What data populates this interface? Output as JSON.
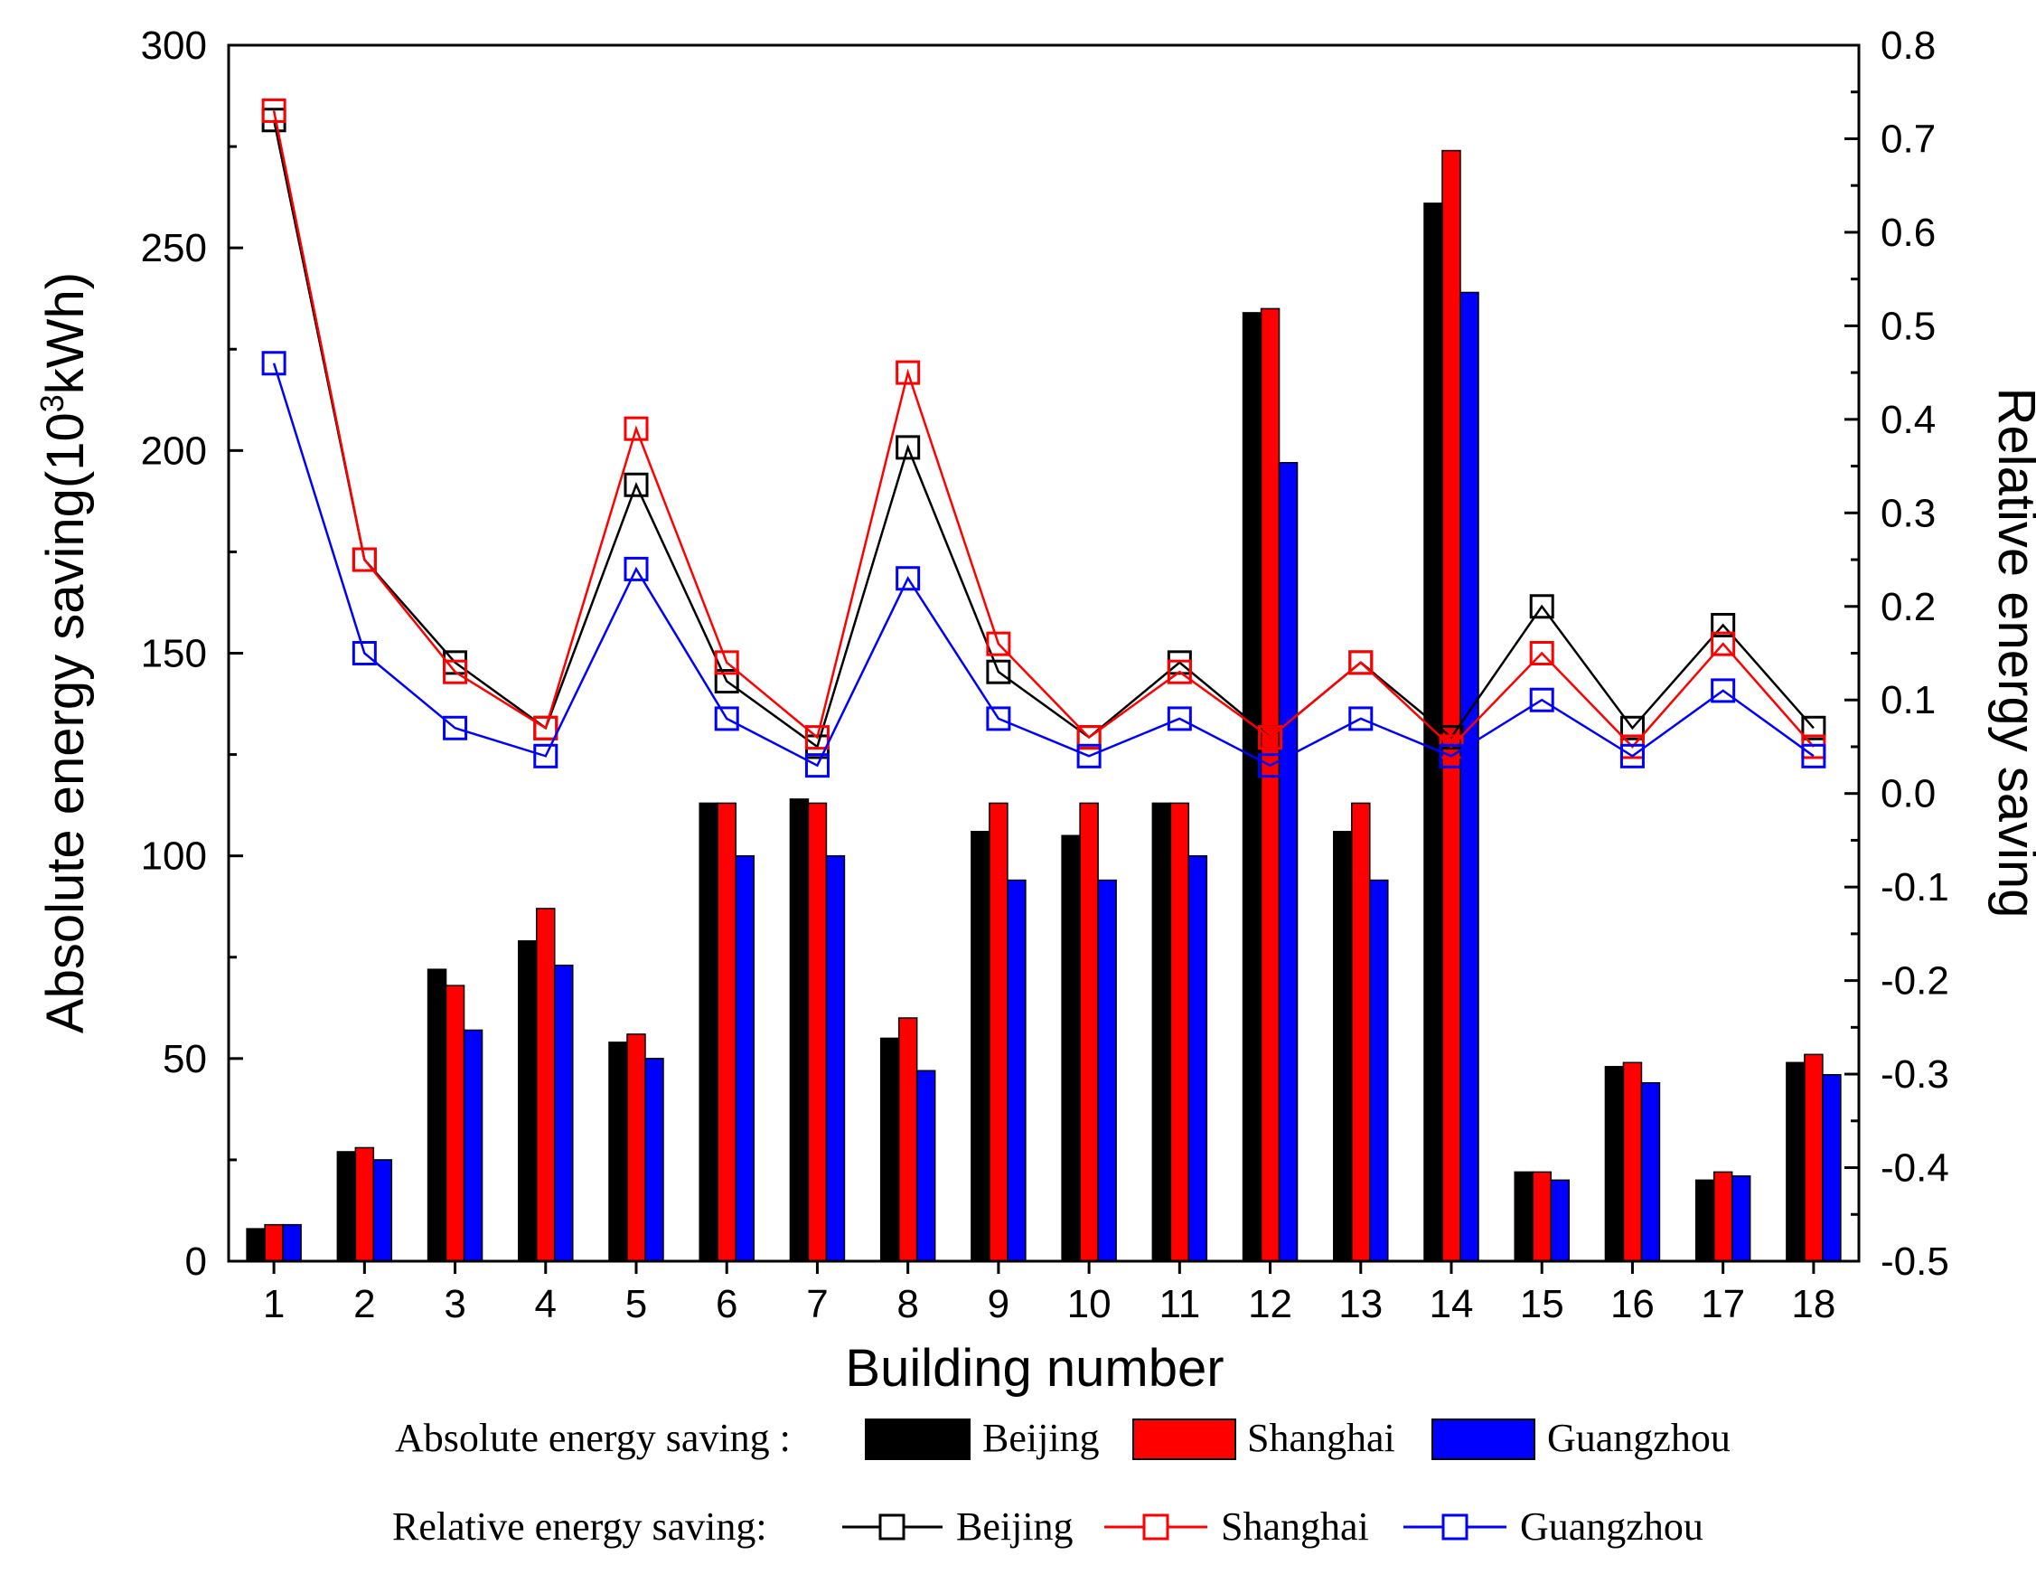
{
  "chart_data": {
    "type": "bar",
    "categories": [
      "1",
      "2",
      "3",
      "4",
      "5",
      "6",
      "7",
      "8",
      "9",
      "10",
      "11",
      "12",
      "13",
      "14",
      "15",
      "16",
      "17",
      "18"
    ],
    "xlabel": "Building number",
    "ylabel_left": "Absolute energy saving(10³kWh)",
    "ylabel_left_parts": {
      "base": "Absolute energy saving(10",
      "sup": "3",
      "unit": "kWh)"
    },
    "ylabel_right": "Relative energy saving",
    "ylim_left": [
      0,
      300
    ],
    "ylim_right": [
      -0.5,
      0.8
    ],
    "yticks_left": [
      "0",
      "50",
      "100",
      "150",
      "200",
      "250",
      "300"
    ],
    "yticks_right": [
      "-0.5",
      "-0.4",
      "-0.3",
      "-0.2",
      "-0.1",
      "0.0",
      "0.1",
      "0.2",
      "0.3",
      "0.4",
      "0.5",
      "0.6",
      "0.7",
      "0.8"
    ],
    "grid": false,
    "bar_series": [
      {
        "name": "Beijing",
        "color": "#000000",
        "values": [
          8,
          27,
          72,
          79,
          54,
          113,
          114,
          55,
          106,
          105,
          113,
          234,
          106,
          261,
          22,
          48,
          20,
          49
        ]
      },
      {
        "name": "Shanghai",
        "color": "#ff0000",
        "values": [
          9,
          28,
          68,
          87,
          56,
          113,
          113,
          60,
          113,
          113,
          113,
          235,
          113,
          274,
          22,
          49,
          22,
          51
        ]
      },
      {
        "name": "Guangzhou",
        "color": "#0000ff",
        "values": [
          9,
          25,
          57,
          73,
          50,
          100,
          100,
          47,
          94,
          94,
          100,
          197,
          94,
          239,
          20,
          44,
          21,
          46
        ]
      }
    ],
    "line_series": [
      {
        "name": "Beijing",
        "color": "#000000",
        "values": [
          0.72,
          0.25,
          0.14,
          0.07,
          0.33,
          0.12,
          0.05,
          0.37,
          0.13,
          0.06,
          0.14,
          0.06,
          0.14,
          0.06,
          0.2,
          0.07,
          0.18,
          0.07
        ]
      },
      {
        "name": "Shanghai",
        "color": "#ff0000",
        "values": [
          0.73,
          0.25,
          0.13,
          0.07,
          0.39,
          0.14,
          0.06,
          0.45,
          0.16,
          0.06,
          0.13,
          0.06,
          0.14,
          0.05,
          0.15,
          0.05,
          0.16,
          0.05
        ]
      },
      {
        "name": "Guangzhou",
        "color": "#0000ff",
        "values": [
          0.46,
          0.15,
          0.07,
          0.04,
          0.24,
          0.08,
          0.03,
          0.23,
          0.08,
          0.04,
          0.08,
          0.03,
          0.08,
          0.04,
          0.1,
          0.04,
          0.11,
          0.04
        ]
      }
    ],
    "legend": {
      "absolute_label": "Absolute energy saving :",
      "relative_label": "Relative energy saving:",
      "placement": "bottom"
    }
  }
}
